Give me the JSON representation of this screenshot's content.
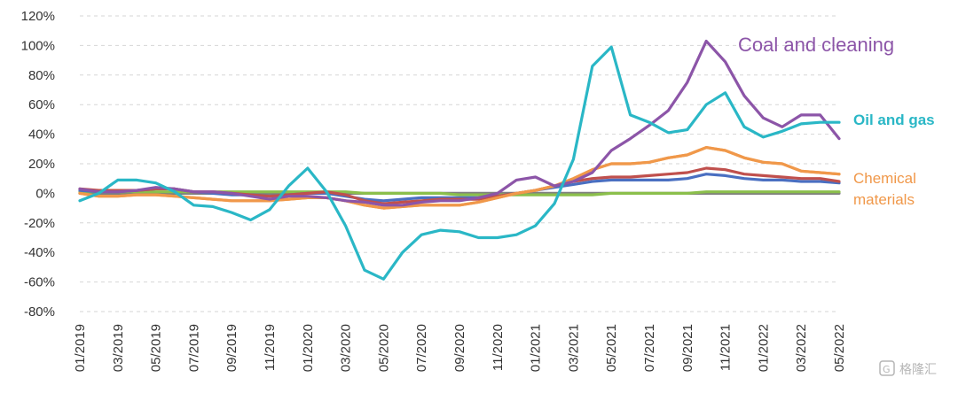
{
  "chart_data": {
    "type": "line",
    "title": "",
    "xlabel": "",
    "ylabel": "",
    "grid": true,
    "ylim": [
      -80,
      120
    ],
    "yticks": [
      -80,
      -60,
      -40,
      -20,
      0,
      20,
      40,
      60,
      80,
      100,
      120
    ],
    "ytick_labels": [
      "-80%",
      "-60%",
      "-40%",
      "-20%",
      "0%",
      "20%",
      "40%",
      "60%",
      "80%",
      "100%",
      "120%"
    ],
    "x": [
      "01/2019",
      "02/2019",
      "03/2019",
      "04/2019",
      "05/2019",
      "06/2019",
      "07/2019",
      "08/2019",
      "09/2019",
      "10/2019",
      "11/2019",
      "12/2019",
      "01/2020",
      "02/2020",
      "03/2020",
      "04/2020",
      "05/2020",
      "06/2020",
      "07/2020",
      "08/2020",
      "09/2020",
      "10/2020",
      "11/2020",
      "12/2020",
      "01/2021",
      "02/2021",
      "03/2021",
      "04/2021",
      "05/2021",
      "06/2021",
      "07/2021",
      "08/2021",
      "09/2021",
      "10/2021",
      "11/2021",
      "12/2021",
      "01/2022",
      "02/2022",
      "03/2022",
      "04/2022",
      "05/2022"
    ],
    "xtick_labels": [
      "01/2019",
      "03/2019",
      "05/2019",
      "07/2019",
      "09/2019",
      "11/2019",
      "01/2020",
      "03/2020",
      "05/2020",
      "07/2020",
      "09/2020",
      "11/2020",
      "01/2021",
      "03/2021",
      "05/2021",
      "07/2021",
      "09/2021",
      "11/2021",
      "01/2022",
      "03/2022",
      "05/2022"
    ],
    "series": [
      {
        "color": "#7f7f7f",
        "values": [
          0,
          0,
          0,
          0,
          0,
          0,
          0,
          0,
          0,
          0,
          0,
          0,
          0,
          0,
          0,
          0,
          0,
          0,
          0,
          0,
          0,
          0,
          0,
          0,
          0,
          0,
          0,
          0,
          0,
          0,
          0,
          0,
          0,
          0,
          0,
          0,
          0,
          0,
          0,
          0,
          0
        ]
      },
      {
        "color": "#8bbf4b",
        "values": [
          1,
          1,
          1,
          1,
          1,
          1,
          1,
          1,
          1,
          1,
          1,
          1,
          1,
          1,
          1,
          0,
          0,
          0,
          0,
          0,
          -1,
          -1,
          -1,
          -1,
          -1,
          -1,
          -1,
          -1,
          0,
          0,
          0,
          0,
          0,
          1,
          1,
          1,
          1,
          1,
          1,
          1,
          1
        ]
      },
      {
        "color": "#4a6fc1",
        "values": [
          2,
          1,
          1,
          2,
          3,
          3,
          1,
          0,
          -1,
          -1,
          -2,
          -1,
          0,
          0,
          -2,
          -4,
          -5,
          -4,
          -3,
          -3,
          -3,
          -3,
          -2,
          0,
          2,
          4,
          6,
          8,
          9,
          9,
          9,
          9,
          10,
          13,
          12,
          10,
          9,
          9,
          8,
          8,
          7
        ]
      },
      {
        "color": "#c0504d",
        "values": [
          3,
          2,
          2,
          2,
          3,
          3,
          1,
          1,
          0,
          -1,
          -2,
          -1,
          0,
          1,
          -1,
          -5,
          -7,
          -6,
          -5,
          -4,
          -4,
          -4,
          -2,
          0,
          2,
          5,
          8,
          10,
          11,
          11,
          12,
          13,
          14,
          17,
          16,
          13,
          12,
          11,
          10,
          10,
          8
        ]
      },
      {
        "color": "#f0984a",
        "values": [
          0,
          -2,
          -2,
          -1,
          -1,
          -2,
          -3,
          -4,
          -5,
          -5,
          -5,
          -4,
          -3,
          -3,
          -5,
          -8,
          -10,
          -9,
          -8,
          -8,
          -8,
          -6,
          -3,
          0,
          2,
          5,
          10,
          16,
          20,
          20,
          21,
          24,
          26,
          31,
          29,
          24,
          21,
          20,
          15,
          14,
          13
        ]
      },
      {
        "name": "Chemical materials",
        "label_lines": [
          "Chemical",
          "materials"
        ],
        "color": "#f0984a",
        "values": [
          0,
          -2,
          -2,
          -1,
          -1,
          -2,
          -3,
          -4,
          -5,
          -5,
          -5,
          -4,
          -3,
          -3,
          -5,
          -8,
          -10,
          -9,
          -8,
          -8,
          -8,
          -6,
          -3,
          0,
          2,
          5,
          10,
          16,
          20,
          20,
          21,
          24,
          26,
          31,
          29,
          24,
          21,
          20,
          15,
          14,
          13
        ]
      },
      {
        "name": "Coal and cleaning",
        "color": "#8c55a8",
        "values": [
          3,
          1,
          1,
          2,
          4,
          3,
          1,
          1,
          0,
          -2,
          -4,
          -2,
          -2,
          -3,
          -5,
          -6,
          -8,
          -8,
          -6,
          -5,
          -5,
          -3,
          0,
          9,
          11,
          5,
          8,
          14,
          29,
          37,
          46,
          56,
          75,
          103,
          89,
          66,
          51,
          45,
          53,
          53,
          37
        ]
      },
      {
        "name": "Oil and gas",
        "color": "#2ab7c6",
        "values": [
          -5,
          0,
          9,
          9,
          7,
          1,
          -8,
          -9,
          -13,
          -18,
          -11,
          5,
          17,
          1,
          -22,
          -52,
          -58,
          -40,
          -28,
          -25,
          -26,
          -30,
          -30,
          -28,
          -22,
          -7,
          23,
          86,
          99,
          53,
          48,
          41,
          43,
          60,
          68,
          45,
          38,
          42,
          47,
          48,
          48
        ]
      }
    ]
  },
  "watermark": {
    "text": "格隆汇"
  }
}
